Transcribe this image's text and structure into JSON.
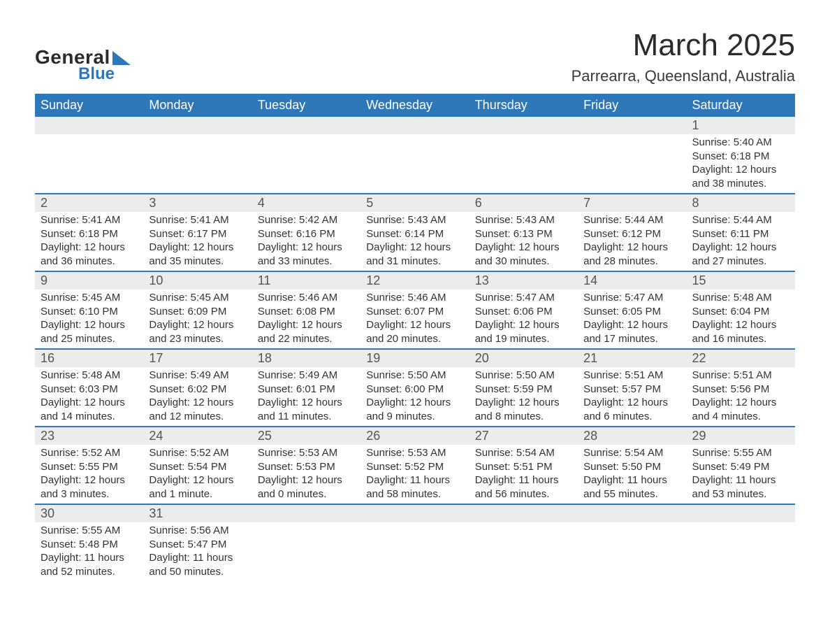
{
  "logo": {
    "line1": "General",
    "line2": "Blue"
  },
  "title": "March 2025",
  "location": "Parrearra, Queensland, Australia",
  "colors": {
    "header_bg": "#2e77b8",
    "header_text": "#ffffff",
    "daynum_bg": "#ececec",
    "row_border": "#2e77b8",
    "text": "#333333"
  },
  "day_headers": [
    "Sunday",
    "Monday",
    "Tuesday",
    "Wednesday",
    "Thursday",
    "Friday",
    "Saturday"
  ],
  "weeks": [
    [
      {
        "num": "",
        "lines": []
      },
      {
        "num": "",
        "lines": []
      },
      {
        "num": "",
        "lines": []
      },
      {
        "num": "",
        "lines": []
      },
      {
        "num": "",
        "lines": []
      },
      {
        "num": "",
        "lines": []
      },
      {
        "num": "1",
        "lines": [
          "Sunrise: 5:40 AM",
          "Sunset: 6:18 PM",
          "Daylight: 12 hours and 38 minutes."
        ]
      }
    ],
    [
      {
        "num": "2",
        "lines": [
          "Sunrise: 5:41 AM",
          "Sunset: 6:18 PM",
          "Daylight: 12 hours and 36 minutes."
        ]
      },
      {
        "num": "3",
        "lines": [
          "Sunrise: 5:41 AM",
          "Sunset: 6:17 PM",
          "Daylight: 12 hours and 35 minutes."
        ]
      },
      {
        "num": "4",
        "lines": [
          "Sunrise: 5:42 AM",
          "Sunset: 6:16 PM",
          "Daylight: 12 hours and 33 minutes."
        ]
      },
      {
        "num": "5",
        "lines": [
          "Sunrise: 5:43 AM",
          "Sunset: 6:14 PM",
          "Daylight: 12 hours and 31 minutes."
        ]
      },
      {
        "num": "6",
        "lines": [
          "Sunrise: 5:43 AM",
          "Sunset: 6:13 PM",
          "Daylight: 12 hours and 30 minutes."
        ]
      },
      {
        "num": "7",
        "lines": [
          "Sunrise: 5:44 AM",
          "Sunset: 6:12 PM",
          "Daylight: 12 hours and 28 minutes."
        ]
      },
      {
        "num": "8",
        "lines": [
          "Sunrise: 5:44 AM",
          "Sunset: 6:11 PM",
          "Daylight: 12 hours and 27 minutes."
        ]
      }
    ],
    [
      {
        "num": "9",
        "lines": [
          "Sunrise: 5:45 AM",
          "Sunset: 6:10 PM",
          "Daylight: 12 hours and 25 minutes."
        ]
      },
      {
        "num": "10",
        "lines": [
          "Sunrise: 5:45 AM",
          "Sunset: 6:09 PM",
          "Daylight: 12 hours and 23 minutes."
        ]
      },
      {
        "num": "11",
        "lines": [
          "Sunrise: 5:46 AM",
          "Sunset: 6:08 PM",
          "Daylight: 12 hours and 22 minutes."
        ]
      },
      {
        "num": "12",
        "lines": [
          "Sunrise: 5:46 AM",
          "Sunset: 6:07 PM",
          "Daylight: 12 hours and 20 minutes."
        ]
      },
      {
        "num": "13",
        "lines": [
          "Sunrise: 5:47 AM",
          "Sunset: 6:06 PM",
          "Daylight: 12 hours and 19 minutes."
        ]
      },
      {
        "num": "14",
        "lines": [
          "Sunrise: 5:47 AM",
          "Sunset: 6:05 PM",
          "Daylight: 12 hours and 17 minutes."
        ]
      },
      {
        "num": "15",
        "lines": [
          "Sunrise: 5:48 AM",
          "Sunset: 6:04 PM",
          "Daylight: 12 hours and 16 minutes."
        ]
      }
    ],
    [
      {
        "num": "16",
        "lines": [
          "Sunrise: 5:48 AM",
          "Sunset: 6:03 PM",
          "Daylight: 12 hours and 14 minutes."
        ]
      },
      {
        "num": "17",
        "lines": [
          "Sunrise: 5:49 AM",
          "Sunset: 6:02 PM",
          "Daylight: 12 hours and 12 minutes."
        ]
      },
      {
        "num": "18",
        "lines": [
          "Sunrise: 5:49 AM",
          "Sunset: 6:01 PM",
          "Daylight: 12 hours and 11 minutes."
        ]
      },
      {
        "num": "19",
        "lines": [
          "Sunrise: 5:50 AM",
          "Sunset: 6:00 PM",
          "Daylight: 12 hours and 9 minutes."
        ]
      },
      {
        "num": "20",
        "lines": [
          "Sunrise: 5:50 AM",
          "Sunset: 5:59 PM",
          "Daylight: 12 hours and 8 minutes."
        ]
      },
      {
        "num": "21",
        "lines": [
          "Sunrise: 5:51 AM",
          "Sunset: 5:57 PM",
          "Daylight: 12 hours and 6 minutes."
        ]
      },
      {
        "num": "22",
        "lines": [
          "Sunrise: 5:51 AM",
          "Sunset: 5:56 PM",
          "Daylight: 12 hours and 4 minutes."
        ]
      }
    ],
    [
      {
        "num": "23",
        "lines": [
          "Sunrise: 5:52 AM",
          "Sunset: 5:55 PM",
          "Daylight: 12 hours and 3 minutes."
        ]
      },
      {
        "num": "24",
        "lines": [
          "Sunrise: 5:52 AM",
          "Sunset: 5:54 PM",
          "Daylight: 12 hours and 1 minute."
        ]
      },
      {
        "num": "25",
        "lines": [
          "Sunrise: 5:53 AM",
          "Sunset: 5:53 PM",
          "Daylight: 12 hours and 0 minutes."
        ]
      },
      {
        "num": "26",
        "lines": [
          "Sunrise: 5:53 AM",
          "Sunset: 5:52 PM",
          "Daylight: 11 hours and 58 minutes."
        ]
      },
      {
        "num": "27",
        "lines": [
          "Sunrise: 5:54 AM",
          "Sunset: 5:51 PM",
          "Daylight: 11 hours and 56 minutes."
        ]
      },
      {
        "num": "28",
        "lines": [
          "Sunrise: 5:54 AM",
          "Sunset: 5:50 PM",
          "Daylight: 11 hours and 55 minutes."
        ]
      },
      {
        "num": "29",
        "lines": [
          "Sunrise: 5:55 AM",
          "Sunset: 5:49 PM",
          "Daylight: 11 hours and 53 minutes."
        ]
      }
    ],
    [
      {
        "num": "30",
        "lines": [
          "Sunrise: 5:55 AM",
          "Sunset: 5:48 PM",
          "Daylight: 11 hours and 52 minutes."
        ]
      },
      {
        "num": "31",
        "lines": [
          "Sunrise: 5:56 AM",
          "Sunset: 5:47 PM",
          "Daylight: 11 hours and 50 minutes."
        ]
      },
      {
        "num": "",
        "lines": []
      },
      {
        "num": "",
        "lines": []
      },
      {
        "num": "",
        "lines": []
      },
      {
        "num": "",
        "lines": []
      },
      {
        "num": "",
        "lines": []
      }
    ]
  ]
}
